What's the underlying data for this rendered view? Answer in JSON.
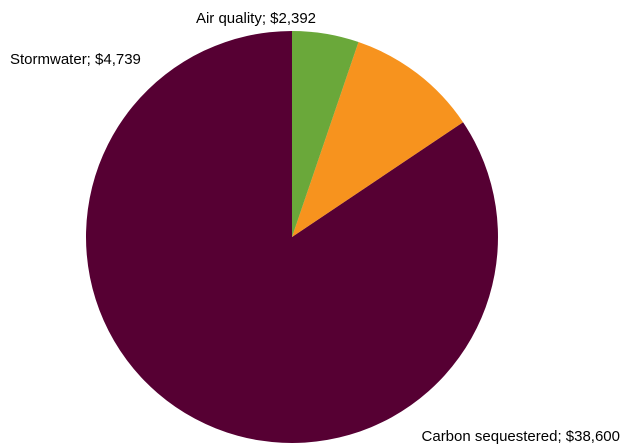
{
  "chart_data": {
    "type": "pie",
    "title": "",
    "categories": [
      "Carbon sequestered",
      "Stormwater",
      "Air quality"
    ],
    "values": [
      38600,
      4739,
      2392
    ],
    "labels": [
      "Carbon sequestered; $38,600",
      "Stormwater; $4,739",
      "Air quality; $2,392"
    ],
    "colors": [
      "#560033",
      "#f7931e",
      "#6aa83a"
    ],
    "start": "12 o'clock, counter-clockwise",
    "legend": "none"
  }
}
